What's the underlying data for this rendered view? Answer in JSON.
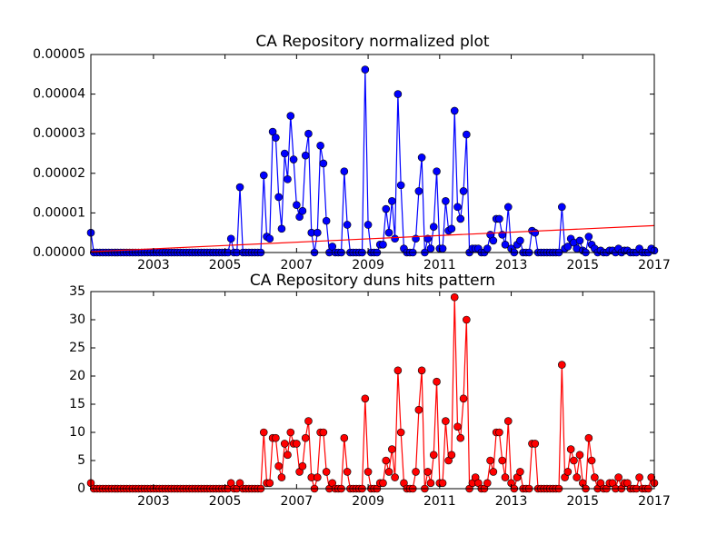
{
  "chart_data": [
    {
      "type": "line",
      "title": "CA Repository normalized plot",
      "x": [
        2001.25,
        2001.333,
        2001.417,
        2001.5,
        2001.583,
        2001.667,
        2001.75,
        2001.833,
        2001.917,
        2002,
        2002.083,
        2002.167,
        2002.25,
        2002.333,
        2002.417,
        2002.5,
        2002.583,
        2002.667,
        2002.75,
        2002.833,
        2002.917,
        2003,
        2003.083,
        2003.167,
        2003.25,
        2003.333,
        2003.417,
        2003.5,
        2003.583,
        2003.667,
        2003.75,
        2003.833,
        2003.917,
        2004,
        2004.083,
        2004.167,
        2004.25,
        2004.333,
        2004.417,
        2004.5,
        2004.583,
        2004.667,
        2004.75,
        2004.833,
        2004.917,
        2005,
        2005.083,
        2005.167,
        2005.25,
        2005.333,
        2005.417,
        2005.5,
        2005.583,
        2005.667,
        2005.75,
        2005.833,
        2005.917,
        2006,
        2006.083,
        2006.167,
        2006.25,
        2006.333,
        2006.417,
        2006.5,
        2006.583,
        2006.667,
        2006.75,
        2006.833,
        2006.917,
        2007,
        2007.083,
        2007.167,
        2007.25,
        2007.333,
        2007.417,
        2007.5,
        2007.583,
        2007.667,
        2007.75,
        2007.833,
        2007.917,
        2008,
        2008.083,
        2008.167,
        2008.25,
        2008.333,
        2008.417,
        2008.5,
        2008.583,
        2008.667,
        2008.75,
        2008.833,
        2008.917,
        2009,
        2009.083,
        2009.167,
        2009.25,
        2009.333,
        2009.417,
        2009.5,
        2009.583,
        2009.667,
        2009.75,
        2009.833,
        2009.917,
        2010,
        2010.083,
        2010.167,
        2010.25,
        2010.333,
        2010.417,
        2010.5,
        2010.583,
        2010.667,
        2010.75,
        2010.833,
        2010.917,
        2011,
        2011.083,
        2011.167,
        2011.25,
        2011.333,
        2011.417,
        2011.5,
        2011.583,
        2011.667,
        2011.75,
        2011.833,
        2011.917,
        2012,
        2012.083,
        2012.167,
        2012.25,
        2012.333,
        2012.417,
        2012.5,
        2012.583,
        2012.667,
        2012.75,
        2012.833,
        2012.917,
        2013,
        2013.083,
        2013.167,
        2013.25,
        2013.333,
        2013.417,
        2013.5,
        2013.583,
        2013.667,
        2013.75,
        2013.833,
        2013.917,
        2014,
        2014.083,
        2014.167,
        2014.25,
        2014.333,
        2014.417,
        2014.5,
        2014.583,
        2014.667,
        2014.75,
        2014.833,
        2014.917,
        2015,
        2015.083,
        2015.167,
        2015.25,
        2015.333,
        2015.417,
        2015.5,
        2015.583,
        2015.667,
        2015.75,
        2015.833,
        2015.917,
        2016,
        2016.083,
        2016.167,
        2016.25,
        2016.333,
        2016.417,
        2016.5,
        2016.583,
        2016.667,
        2016.75,
        2016.833,
        2016.917,
        2017
      ],
      "series": [
        {
          "color": "#0000ff",
          "marker": true,
          "values": [
            5e-06,
            0,
            0,
            0,
            0,
            0,
            0,
            0,
            0,
            0,
            0,
            0,
            0,
            0,
            0,
            0,
            0,
            0,
            0,
            0,
            0,
            0,
            0,
            0,
            0,
            0,
            0,
            0,
            0,
            0,
            0,
            0,
            0,
            0,
            0,
            0,
            0,
            0,
            0,
            0,
            0,
            0,
            0,
            0,
            0,
            0,
            0,
            3.5e-06,
            0,
            0,
            1.65e-05,
            0,
            0,
            0,
            0,
            0,
            0,
            0,
            1.95e-05,
            4e-06,
            3.5e-06,
            3.05e-05,
            2.9e-05,
            1.4e-05,
            6e-06,
            2.5e-05,
            1.85e-05,
            3.45e-05,
            2.35e-05,
            1.2e-05,
            9e-06,
            1.05e-05,
            2.45e-05,
            3e-05,
            5e-06,
            0,
            5e-06,
            2.7e-05,
            2.25e-05,
            8e-06,
            0,
            1.5e-06,
            0,
            0,
            0,
            2.05e-05,
            7e-06,
            0,
            0,
            0,
            0,
            0,
            4.62e-05,
            7e-06,
            0,
            0,
            0,
            2e-06,
            2e-06,
            1.1e-05,
            5e-06,
            1.3e-05,
            3.5e-06,
            4e-05,
            1.7e-05,
            1e-06,
            0,
            0,
            0,
            3.5e-06,
            1.55e-05,
            2.4e-05,
            0,
            3.5e-06,
            1e-06,
            6.5e-06,
            2.05e-05,
            1e-06,
            1e-06,
            1.3e-05,
            5.5e-06,
            6e-06,
            3.58e-05,
            1.15e-05,
            8.5e-06,
            1.55e-05,
            2.98e-05,
            0,
            1e-06,
            1e-06,
            1e-06,
            0,
            0,
            1e-06,
            4.5e-06,
            3e-06,
            8.5e-06,
            8.5e-06,
            4.5e-06,
            2e-06,
            1.15e-05,
            1e-06,
            0,
            2e-06,
            3e-06,
            0,
            0,
            0,
            5.5e-06,
            5e-06,
            0,
            0,
            0,
            0,
            0,
            0,
            0,
            0,
            1.15e-05,
            1e-06,
            1.5e-06,
            3.5e-06,
            2.5e-06,
            1e-06,
            3e-06,
            5e-07,
            0,
            4e-06,
            2e-06,
            1e-06,
            0,
            5e-07,
            0,
            0,
            5e-07,
            5e-07,
            0,
            1e-06,
            0,
            5e-07,
            5e-07,
            0,
            0,
            0,
            1e-06,
            0,
            0,
            0,
            1e-06,
            5e-07
          ]
        },
        {
          "color": "#ff0000",
          "marker": false,
          "x": [
            2001.25,
            2017
          ],
          "values": [
            2e-07,
            6.8e-06
          ]
        }
      ],
      "xlim": [
        2001.25,
        2017
      ],
      "xticks": [
        2003,
        2005,
        2007,
        2009,
        2011,
        2013,
        2015,
        2017
      ],
      "ylim": [
        0,
        5e-05
      ],
      "yticks": [
        {
          "value": 0,
          "label": "0.00000"
        },
        1e-05,
        2e-05,
        3e-05,
        4e-05,
        5e-05
      ]
    },
    {
      "type": "line",
      "title": "CA Repository duns hits pattern",
      "x": [
        2001.25,
        2001.333,
        2001.417,
        2001.5,
        2001.583,
        2001.667,
        2001.75,
        2001.833,
        2001.917,
        2002,
        2002.083,
        2002.167,
        2002.25,
        2002.333,
        2002.417,
        2002.5,
        2002.583,
        2002.667,
        2002.75,
        2002.833,
        2002.917,
        2003,
        2003.083,
        2003.167,
        2003.25,
        2003.333,
        2003.417,
        2003.5,
        2003.583,
        2003.667,
        2003.75,
        2003.833,
        2003.917,
        2004,
        2004.083,
        2004.167,
        2004.25,
        2004.333,
        2004.417,
        2004.5,
        2004.583,
        2004.667,
        2004.75,
        2004.833,
        2004.917,
        2005,
        2005.083,
        2005.167,
        2005.25,
        2005.333,
        2005.417,
        2005.5,
        2005.583,
        2005.667,
        2005.75,
        2005.833,
        2005.917,
        2006,
        2006.083,
        2006.167,
        2006.25,
        2006.333,
        2006.417,
        2006.5,
        2006.583,
        2006.667,
        2006.75,
        2006.833,
        2006.917,
        2007,
        2007.083,
        2007.167,
        2007.25,
        2007.333,
        2007.417,
        2007.5,
        2007.583,
        2007.667,
        2007.75,
        2007.833,
        2007.917,
        2008,
        2008.083,
        2008.167,
        2008.25,
        2008.333,
        2008.417,
        2008.5,
        2008.583,
        2008.667,
        2008.75,
        2008.833,
        2008.917,
        2009,
        2009.083,
        2009.167,
        2009.25,
        2009.333,
        2009.417,
        2009.5,
        2009.583,
        2009.667,
        2009.75,
        2009.833,
        2009.917,
        2010,
        2010.083,
        2010.167,
        2010.25,
        2010.333,
        2010.417,
        2010.5,
        2010.583,
        2010.667,
        2010.75,
        2010.833,
        2010.917,
        2011,
        2011.083,
        2011.167,
        2011.25,
        2011.333,
        2011.417,
        2011.5,
        2011.583,
        2011.667,
        2011.75,
        2011.833,
        2011.917,
        2012,
        2012.083,
        2012.167,
        2012.25,
        2012.333,
        2012.417,
        2012.5,
        2012.583,
        2012.667,
        2012.75,
        2012.833,
        2012.917,
        2013,
        2013.083,
        2013.167,
        2013.25,
        2013.333,
        2013.417,
        2013.5,
        2013.583,
        2013.667,
        2013.75,
        2013.833,
        2013.917,
        2014,
        2014.083,
        2014.167,
        2014.25,
        2014.333,
        2014.417,
        2014.5,
        2014.583,
        2014.667,
        2014.75,
        2014.833,
        2014.917,
        2015,
        2015.083,
        2015.167,
        2015.25,
        2015.333,
        2015.417,
        2015.5,
        2015.583,
        2015.667,
        2015.75,
        2015.833,
        2015.917,
        2016,
        2016.083,
        2016.167,
        2016.25,
        2016.333,
        2016.417,
        2016.5,
        2016.583,
        2016.667,
        2016.75,
        2016.833,
        2016.917,
        2017
      ],
      "series": [
        {
          "color": "#ff0000",
          "marker": true,
          "values": [
            1,
            0,
            0,
            0,
            0,
            0,
            0,
            0,
            0,
            0,
            0,
            0,
            0,
            0,
            0,
            0,
            0,
            0,
            0,
            0,
            0,
            0,
            0,
            0,
            0,
            0,
            0,
            0,
            0,
            0,
            0,
            0,
            0,
            0,
            0,
            0,
            0,
            0,
            0,
            0,
            0,
            0,
            0,
            0,
            0,
            0,
            0,
            1,
            0,
            0,
            1,
            0,
            0,
            0,
            0,
            0,
            0,
            0,
            10,
            1,
            1,
            9,
            9,
            4,
            2,
            8,
            6,
            10,
            8,
            8,
            3,
            4,
            9,
            12,
            2,
            0,
            2,
            10,
            10,
            3,
            0,
            1,
            0,
            0,
            0,
            9,
            3,
            0,
            0,
            0,
            0,
            0,
            16,
            3,
            0,
            0,
            0,
            1,
            1,
            5,
            3,
            7,
            2,
            21,
            10,
            1,
            0,
            0,
            0,
            3,
            14,
            21,
            0,
            3,
            1,
            6,
            19,
            1,
            1,
            12,
            5,
            6,
            34,
            11,
            9,
            16,
            30,
            0,
            1,
            2,
            1,
            0,
            0,
            1,
            5,
            3,
            10,
            10,
            5,
            2,
            12,
            1,
            0,
            2,
            3,
            0,
            0,
            0,
            8,
            8,
            0,
            0,
            0,
            0,
            0,
            0,
            0,
            0,
            22,
            2,
            3,
            7,
            5,
            2,
            6,
            1,
            0,
            9,
            5,
            2,
            0,
            1,
            0,
            0,
            1,
            1,
            0,
            2,
            0,
            1,
            1,
            0,
            0,
            0,
            2,
            0,
            0,
            0,
            2,
            1
          ]
        }
      ],
      "xlim": [
        2001.25,
        2017
      ],
      "xticks": [
        2003,
        2005,
        2007,
        2009,
        2011,
        2013,
        2015,
        2017
      ],
      "ylim": [
        0,
        35
      ],
      "yticks": [
        0,
        5,
        10,
        15,
        20,
        25,
        30,
        35
      ]
    }
  ]
}
